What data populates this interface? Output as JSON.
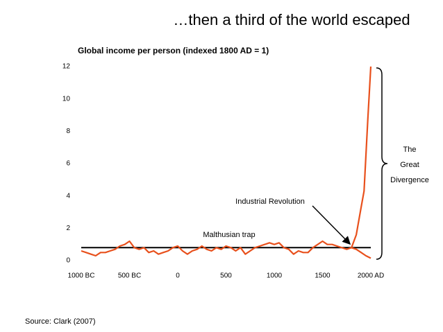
{
  "chart_data": {
    "type": "line",
    "title": "…then a third of the world escaped",
    "subtitle": "Global income per person (indexed 1800 AD = 1)",
    "source": "Source: Clark (2007)",
    "annotations": [
      "Malthusian trap",
      "Industrial Revolution",
      "The",
      "Great",
      "Divergence"
    ],
    "xlim": [
      -1000,
      2000
    ],
    "xticks": [
      {
        "value": -1000,
        "label": "1000 BC"
      },
      {
        "value": -500,
        "label": "500 BC"
      },
      0,
      500,
      1000,
      1500,
      {
        "value": 2000,
        "label": "2000 AD"
      }
    ],
    "ylim": [
      0,
      12
    ],
    "yticks": [
      0,
      2,
      4,
      6,
      8,
      10,
      12
    ],
    "grid": false,
    "series": [
      {
        "color": "#000000",
        "x": [
          -1000,
          2000
        ],
        "values": [
          0.8,
          0.8
        ]
      },
      {
        "color": "#e8501c",
        "x": [
          -1000,
          -950,
          -900,
          -850,
          -800,
          -750,
          -700,
          -650,
          -600,
          -550,
          -500,
          -450,
          -400,
          -350,
          -300,
          -250,
          -200,
          -150,
          -100,
          -50,
          0,
          50,
          100,
          150,
          200,
          250,
          300,
          350,
          400,
          450,
          500,
          550,
          600,
          650,
          700,
          750,
          800,
          850,
          900,
          950,
          1000,
          1050,
          1100,
          1150,
          1200,
          1250,
          1300,
          1350,
          1400,
          1450,
          1500,
          1550,
          1600,
          1650,
          1700,
          1750,
          1800,
          1850,
          1900,
          1930,
          1970,
          2000
        ],
        "values": [
          0.6,
          0.5,
          0.4,
          0.3,
          0.5,
          0.5,
          0.6,
          0.7,
          0.9,
          1.0,
          1.2,
          0.8,
          0.7,
          0.8,
          0.5,
          0.6,
          0.4,
          0.5,
          0.6,
          0.8,
          0.9,
          0.6,
          0.4,
          0.6,
          0.7,
          0.9,
          0.7,
          0.6,
          0.8,
          0.7,
          0.9,
          0.8,
          0.6,
          0.8,
          0.4,
          0.6,
          0.8,
          0.9,
          1.0,
          1.1,
          1.0,
          1.1,
          0.8,
          0.7,
          0.4,
          0.6,
          0.5,
          0.5,
          0.8,
          1.0,
          1.2,
          1.0,
          1.0,
          0.9,
          0.8,
          0.7,
          0.8,
          1.6,
          3.3,
          4.3,
          8.8,
          12
        ]
      },
      {
        "color": "#e8501c",
        "x": [
          1800,
          1850,
          1900,
          1950,
          2000
        ],
        "values": [
          0.8,
          0.7,
          0.5,
          0.3,
          0.15
        ]
      }
    ]
  }
}
